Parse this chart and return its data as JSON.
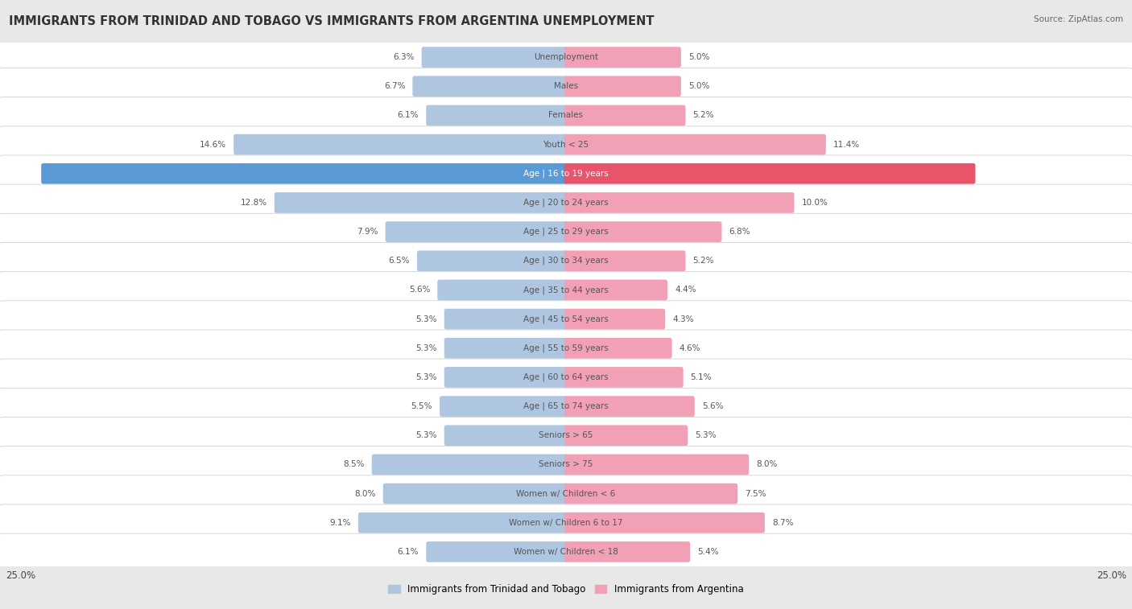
{
  "title": "IMMIGRANTS FROM TRINIDAD AND TOBAGO VS IMMIGRANTS FROM ARGENTINA UNEMPLOYMENT",
  "source": "Source: ZipAtlas.com",
  "categories": [
    "Unemployment",
    "Males",
    "Females",
    "Youth < 25",
    "Age | 16 to 19 years",
    "Age | 20 to 24 years",
    "Age | 25 to 29 years",
    "Age | 30 to 34 years",
    "Age | 35 to 44 years",
    "Age | 45 to 54 years",
    "Age | 55 to 59 years",
    "Age | 60 to 64 years",
    "Age | 65 to 74 years",
    "Seniors > 65",
    "Seniors > 75",
    "Women w/ Children < 6",
    "Women w/ Children 6 to 17",
    "Women w/ Children < 18"
  ],
  "left_values": [
    6.3,
    6.7,
    6.1,
    14.6,
    23.1,
    12.8,
    7.9,
    6.5,
    5.6,
    5.3,
    5.3,
    5.3,
    5.5,
    5.3,
    8.5,
    8.0,
    9.1,
    6.1
  ],
  "right_values": [
    5.0,
    5.0,
    5.2,
    11.4,
    18.0,
    10.0,
    6.8,
    5.2,
    4.4,
    4.3,
    4.6,
    5.1,
    5.6,
    5.3,
    8.0,
    7.5,
    8.7,
    5.4
  ],
  "left_color": "#aec6e0",
  "right_color": "#f2a0b5",
  "highlight_left_color": "#5b9bd5",
  "highlight_right_color": "#e8546a",
  "highlight_row": 4,
  "bg_color": "#e8e8e8",
  "row_bg_color": "#f5f5f5",
  "row_alt_bg_color": "#ffffff",
  "label_color": "#555555",
  "value_color": "#555555",
  "axis_max": 25.0,
  "legend_left": "Immigrants from Trinidad and Tobago",
  "legend_right": "Immigrants from Argentina",
  "title_fontsize": 10.5,
  "label_fontsize": 7.5,
  "value_fontsize": 7.5
}
